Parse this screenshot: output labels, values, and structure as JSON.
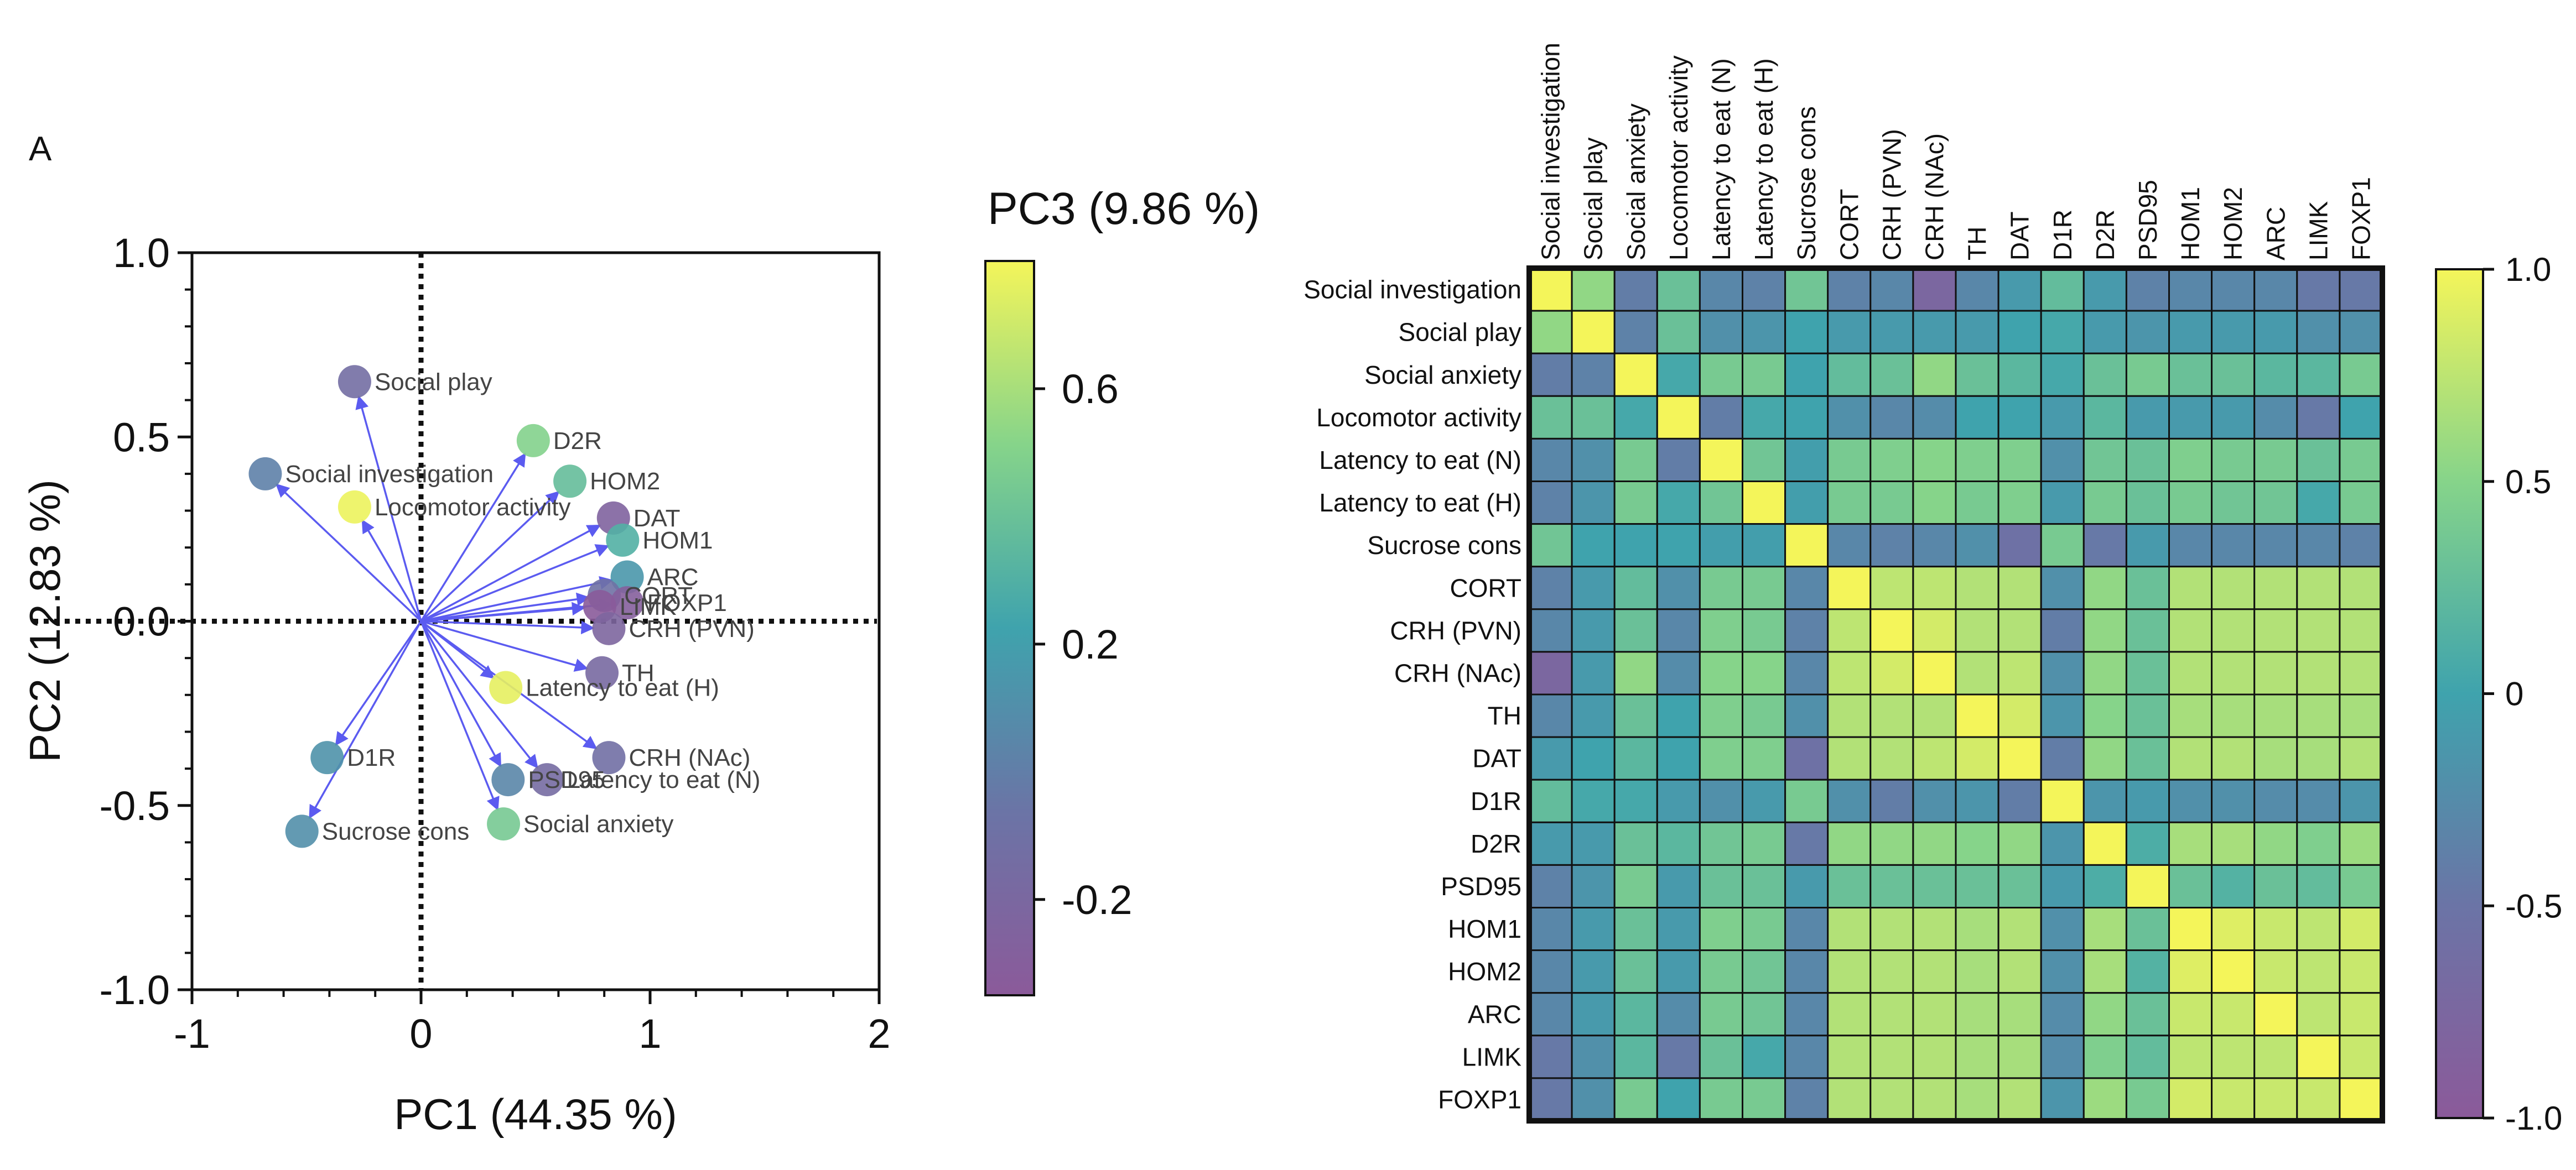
{
  "panel_label": "A",
  "chart_data": [
    {
      "type": "scatter",
      "subtype": "biplot",
      "title": "",
      "xlabel": "PC1 (44.35 %)",
      "ylabel": "PC2 (12.83 %)",
      "xlim": [
        -1,
        2
      ],
      "ylim": [
        -1,
        1
      ],
      "xticks": [
        "-1",
        "0",
        "1",
        "2"
      ],
      "yticks": [
        "1.0",
        "0.5",
        "0.0",
        "-0.5",
        "-1.0"
      ],
      "color_label": "PC3 (9.86 %)",
      "color_range": [
        -0.35,
        0.8
      ],
      "color_ticks": [
        "0.6",
        "0.2",
        "-0.2"
      ],
      "points": [
        {
          "label": "Social play",
          "x": -0.29,
          "y": 0.65,
          "pc3": -0.13
        },
        {
          "label": "Social investigation",
          "x": -0.68,
          "y": 0.4,
          "pc3": 0.02
        },
        {
          "label": "Locomotor activity",
          "x": -0.29,
          "y": 0.31,
          "pc3": 0.78
        },
        {
          "label": "D2R",
          "x": 0.49,
          "y": 0.49,
          "pc3": 0.5
        },
        {
          "label": "HOM2",
          "x": 0.65,
          "y": 0.38,
          "pc3": 0.38
        },
        {
          "label": "DAT",
          "x": 0.84,
          "y": 0.28,
          "pc3": -0.25
        },
        {
          "label": "HOM1",
          "x": 0.88,
          "y": 0.22,
          "pc3": 0.3
        },
        {
          "label": "ARC",
          "x": 0.9,
          "y": 0.12,
          "pc3": 0.15
        },
        {
          "label": "CORT",
          "x": 0.8,
          "y": 0.07,
          "pc3": -0.1
        },
        {
          "label": "FOXP1",
          "x": 0.9,
          "y": 0.05,
          "pc3": -0.3
        },
        {
          "label": "LIMK",
          "x": 0.78,
          "y": 0.04,
          "pc3": -0.34
        },
        {
          "label": "CRH (PVN)",
          "x": 0.82,
          "y": -0.02,
          "pc3": -0.22
        },
        {
          "label": "TH",
          "x": 0.79,
          "y": -0.14,
          "pc3": -0.18
        },
        {
          "label": "Latency to eat (H)",
          "x": 0.37,
          "y": -0.18,
          "pc3": 0.76
        },
        {
          "label": "D1R",
          "x": -0.41,
          "y": -0.37,
          "pc3": 0.12
        },
        {
          "label": "CRH (NAc)",
          "x": 0.82,
          "y": -0.37,
          "pc3": -0.12
        },
        {
          "label": "PSD95",
          "x": 0.38,
          "y": -0.43,
          "pc3": 0.05
        },
        {
          "label": "Latency to eat (N)",
          "x": 0.55,
          "y": -0.43,
          "pc3": -0.15
        },
        {
          "label": "Social anxiety",
          "x": 0.36,
          "y": -0.55,
          "pc3": 0.45
        },
        {
          "label": "Sucrose cons",
          "x": -0.52,
          "y": -0.57,
          "pc3": 0.1
        }
      ]
    },
    {
      "type": "heatmap",
      "title": "",
      "labels": [
        "Social investigation",
        "Social play",
        "Social anxiety",
        "Locomotor activity",
        "Latency to eat (N)",
        "Latency to eat (H)",
        "Sucrose cons",
        "CORT",
        "CRH (PVN)",
        "CRH (NAc)",
        "TH",
        "DAT",
        "D1R",
        "D2R",
        "PSD95",
        "HOM1",
        "HOM2",
        "ARC",
        "LIMK",
        "FOXP1"
      ],
      "color_range": [
        -1.0,
        1.0
      ],
      "color_ticks": [
        "1.0",
        "0.5",
        "0",
        "-0.5",
        "-1.0"
      ],
      "matrix": [
        [
          1.0,
          0.55,
          -0.4,
          0.3,
          -0.3,
          -0.35,
          0.35,
          -0.35,
          -0.3,
          -0.75,
          -0.3,
          -0.1,
          0.25,
          -0.1,
          -0.35,
          -0.3,
          -0.3,
          -0.3,
          -0.45,
          -0.45
        ],
        [
          0.55,
          1.0,
          -0.35,
          0.3,
          -0.2,
          -0.15,
          0.0,
          -0.1,
          -0.1,
          -0.1,
          -0.1,
          0.0,
          0.05,
          -0.1,
          -0.15,
          -0.1,
          -0.1,
          -0.1,
          -0.2,
          -0.2
        ],
        [
          -0.4,
          -0.35,
          1.0,
          0.05,
          0.4,
          0.4,
          0.0,
          0.25,
          0.3,
          0.55,
          0.3,
          0.2,
          0.05,
          0.3,
          0.4,
          0.3,
          0.3,
          0.2,
          0.2,
          0.4
        ],
        [
          0.3,
          0.3,
          0.05,
          1.0,
          -0.4,
          0.05,
          0.0,
          -0.2,
          -0.3,
          -0.25,
          0.0,
          0.0,
          -0.1,
          0.2,
          -0.1,
          -0.1,
          -0.1,
          -0.25,
          -0.45,
          0.0
        ],
        [
          -0.3,
          -0.2,
          0.4,
          -0.4,
          1.0,
          0.35,
          -0.05,
          0.4,
          0.45,
          0.5,
          0.45,
          0.45,
          -0.2,
          0.35,
          0.3,
          0.45,
          0.4,
          0.4,
          0.3,
          0.4
        ],
        [
          -0.35,
          -0.15,
          0.4,
          0.05,
          0.35,
          1.0,
          -0.05,
          0.4,
          0.4,
          0.5,
          0.4,
          0.45,
          -0.1,
          0.4,
          0.3,
          0.4,
          0.35,
          0.35,
          0.05,
          0.4
        ],
        [
          0.35,
          0.0,
          0.0,
          0.0,
          -0.05,
          -0.05,
          1.0,
          -0.3,
          -0.35,
          -0.3,
          -0.2,
          -0.55,
          0.4,
          -0.45,
          -0.1,
          -0.3,
          -0.3,
          -0.3,
          -0.3,
          -0.35
        ],
        [
          -0.35,
          -0.1,
          0.25,
          -0.2,
          0.4,
          0.4,
          -0.3,
          1.0,
          0.75,
          0.75,
          0.7,
          0.7,
          -0.2,
          0.55,
          0.3,
          0.7,
          0.7,
          0.7,
          0.7,
          0.7
        ],
        [
          -0.3,
          -0.1,
          0.3,
          -0.3,
          0.45,
          0.4,
          -0.35,
          0.75,
          1.0,
          0.85,
          0.7,
          0.7,
          -0.4,
          0.55,
          0.3,
          0.7,
          0.7,
          0.7,
          0.7,
          0.7
        ],
        [
          -0.75,
          -0.1,
          0.55,
          -0.25,
          0.5,
          0.5,
          -0.3,
          0.75,
          0.85,
          1.0,
          0.7,
          0.75,
          -0.2,
          0.55,
          0.3,
          0.7,
          0.7,
          0.7,
          0.7,
          0.7
        ],
        [
          -0.3,
          -0.1,
          0.3,
          0.0,
          0.45,
          0.4,
          -0.2,
          0.7,
          0.7,
          0.7,
          1.0,
          0.85,
          -0.15,
          0.5,
          0.3,
          0.65,
          0.65,
          0.65,
          0.65,
          0.65
        ],
        [
          -0.1,
          0.0,
          0.2,
          0.0,
          0.45,
          0.45,
          -0.55,
          0.7,
          0.7,
          0.75,
          0.85,
          1.0,
          -0.4,
          0.55,
          0.3,
          0.7,
          0.7,
          0.65,
          0.65,
          0.7
        ],
        [
          0.25,
          0.05,
          0.05,
          -0.1,
          -0.2,
          -0.1,
          0.4,
          -0.2,
          -0.4,
          -0.2,
          -0.15,
          -0.4,
          1.0,
          -0.15,
          -0.1,
          -0.2,
          -0.2,
          -0.25,
          -0.25,
          -0.15
        ],
        [
          -0.1,
          -0.1,
          0.3,
          0.2,
          0.35,
          0.4,
          -0.45,
          0.55,
          0.55,
          0.55,
          0.5,
          0.55,
          -0.15,
          1.0,
          0.1,
          0.65,
          0.65,
          0.55,
          0.45,
          0.6
        ],
        [
          -0.35,
          -0.15,
          0.4,
          -0.1,
          0.3,
          0.3,
          -0.1,
          0.3,
          0.3,
          0.3,
          0.3,
          0.3,
          -0.1,
          0.1,
          1.0,
          0.3,
          0.15,
          0.3,
          0.25,
          0.4
        ],
        [
          -0.3,
          -0.1,
          0.3,
          -0.1,
          0.45,
          0.4,
          -0.3,
          0.7,
          0.7,
          0.7,
          0.65,
          0.7,
          -0.2,
          0.65,
          0.3,
          1.0,
          0.9,
          0.8,
          0.75,
          0.85
        ],
        [
          -0.3,
          -0.1,
          0.3,
          -0.1,
          0.4,
          0.35,
          -0.3,
          0.7,
          0.7,
          0.7,
          0.65,
          0.7,
          -0.2,
          0.65,
          0.15,
          0.9,
          1.0,
          0.8,
          0.75,
          0.8
        ],
        [
          -0.3,
          -0.1,
          0.2,
          -0.25,
          0.4,
          0.35,
          -0.3,
          0.7,
          0.7,
          0.7,
          0.65,
          0.65,
          -0.25,
          0.55,
          0.3,
          0.8,
          0.8,
          1.0,
          0.75,
          0.8
        ],
        [
          -0.45,
          -0.2,
          0.2,
          -0.45,
          0.3,
          0.05,
          -0.3,
          0.7,
          0.7,
          0.7,
          0.65,
          0.65,
          -0.25,
          0.45,
          0.25,
          0.75,
          0.75,
          0.75,
          1.0,
          0.8
        ],
        [
          -0.45,
          -0.2,
          0.4,
          0.0,
          0.4,
          0.4,
          -0.35,
          0.7,
          0.7,
          0.7,
          0.65,
          0.7,
          -0.15,
          0.6,
          0.4,
          0.85,
          0.8,
          0.8,
          0.8,
          1.0
        ]
      ]
    }
  ]
}
